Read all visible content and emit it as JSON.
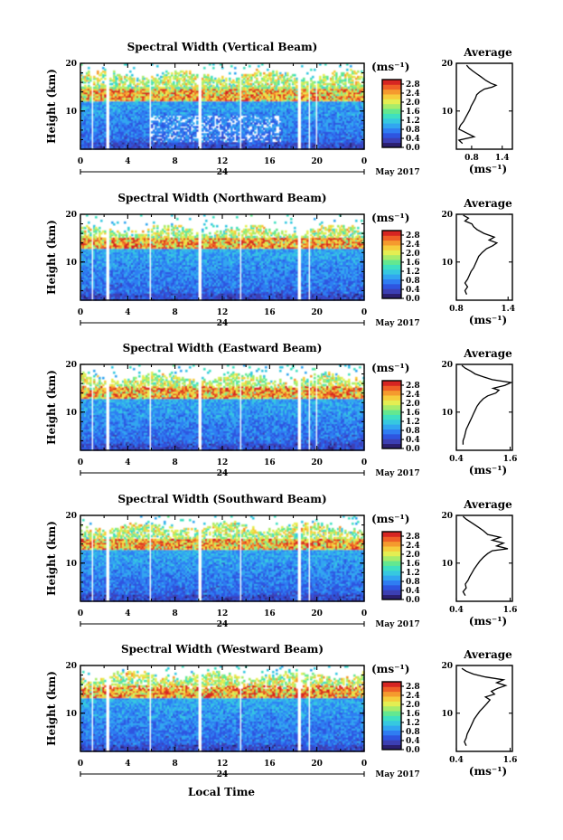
{
  "figure": {
    "x_axis_label": "Local Time",
    "date_suffix": "May 2017",
    "date_day": "24",
    "colorbar_unit": "(ms⁻¹)",
    "profile_title": "Average",
    "profile_unit": "(ms⁻¹)",
    "colorscale": [
      "#2b1f6f",
      "#3c3fb3",
      "#2e55e0",
      "#2f7df2",
      "#31a6f0",
      "#36c8e0",
      "#3fe0c0",
      "#63e890",
      "#a8ec6a",
      "#e4ee52",
      "#f6cc3c",
      "#f59a2e",
      "#ef5f27",
      "#d72522"
    ]
  },
  "chart_data": [
    {
      "type": "heatmap",
      "title": "Spectral Width (Vertical Beam)",
      "ylabel": "Height (km)",
      "xlabel": "Local Time",
      "x_ticks": [
        "0",
        "4",
        "8",
        "12",
        "16",
        "20",
        "0"
      ],
      "y_ticks": [
        "20",
        "10"
      ],
      "xlim": [
        0,
        24
      ],
      "ylim": [
        2,
        20
      ],
      "colorbar": {
        "unit": "(ms⁻¹)",
        "ticks": [
          "2.8",
          "2.4",
          "2.0",
          "1.6",
          "1.2",
          "0.8",
          "0.4",
          "0.0"
        ],
        "range": [
          0,
          3.0
        ]
      },
      "data_gaps_hours": [
        [
          0.9,
          1.1
        ],
        [
          2.2,
          2.4
        ],
        [
          5.8,
          6.0
        ],
        [
          10.0,
          10.2
        ],
        [
          13.4,
          13.6
        ],
        [
          18.4,
          18.6
        ],
        [
          19.2,
          19.4
        ],
        [
          19.9,
          20.1
        ]
      ],
      "profile": {
        "title": "Average",
        "xlabel": "(ms⁻¹)",
        "x_ticks": [
          "0.8",
          "1.4"
        ],
        "xlim": [
          0.5,
          1.6
        ],
        "y_ticks": [
          "20",
          "10"
        ],
        "ylim": [
          2,
          20
        ],
        "points": [
          [
            0.62,
            3.2
          ],
          [
            0.55,
            3.9
          ],
          [
            0.85,
            4.6
          ],
          [
            0.7,
            5.4
          ],
          [
            0.55,
            6.2
          ],
          [
            0.58,
            7.0
          ],
          [
            0.64,
            7.8
          ],
          [
            0.68,
            8.6
          ],
          [
            0.72,
            9.4
          ],
          [
            0.76,
            10.2
          ],
          [
            0.79,
            11.0
          ],
          [
            0.83,
            11.8
          ],
          [
            0.87,
            12.6
          ],
          [
            0.9,
            13.4
          ],
          [
            0.96,
            14.0
          ],
          [
            1.05,
            14.6
          ],
          [
            1.2,
            15.0
          ],
          [
            1.28,
            15.4
          ],
          [
            1.18,
            15.8
          ],
          [
            1.08,
            16.4
          ],
          [
            0.98,
            17.2
          ],
          [
            0.9,
            17.8
          ],
          [
            0.82,
            18.4
          ],
          [
            0.75,
            19.0
          ],
          [
            0.7,
            19.6
          ]
        ]
      }
    },
    {
      "type": "heatmap",
      "title": "Spectral Width (Northward Beam)",
      "ylabel": "Height (km)",
      "xlabel": "Local Time",
      "x_ticks": [
        "0",
        "4",
        "8",
        "12",
        "16",
        "20",
        "0"
      ],
      "y_ticks": [
        "20",
        "10"
      ],
      "xlim": [
        0,
        24
      ],
      "ylim": [
        2,
        20
      ],
      "colorbar": {
        "unit": "(ms⁻¹)",
        "ticks": [
          "2.8",
          "2.4",
          "2.0",
          "1.6",
          "1.2",
          "0.8",
          "0.4",
          "0.0"
        ],
        "range": [
          0,
          3.0
        ]
      },
      "data_gaps_hours": [
        [
          0.9,
          1.1
        ],
        [
          2.2,
          2.4
        ],
        [
          5.8,
          6.0
        ],
        [
          10.0,
          10.2
        ],
        [
          13.4,
          13.6
        ],
        [
          18.4,
          18.6
        ],
        [
          19.2,
          19.4
        ]
      ],
      "profile": {
        "title": "Average",
        "xlabel": "(ms⁻¹)",
        "x_ticks": [
          "0.8",
          "1.4"
        ],
        "xlim": [
          0.8,
          1.45
        ],
        "y_ticks": [
          "20",
          "10"
        ],
        "ylim": [
          2,
          20
        ],
        "points": [
          [
            0.92,
            3.2
          ],
          [
            0.9,
            4.0
          ],
          [
            0.93,
            4.8
          ],
          [
            0.9,
            5.6
          ],
          [
            0.93,
            6.4
          ],
          [
            0.95,
            7.2
          ],
          [
            0.97,
            8.0
          ],
          [
            1.0,
            8.8
          ],
          [
            1.02,
            9.6
          ],
          [
            1.04,
            10.4
          ],
          [
            1.06,
            11.2
          ],
          [
            1.1,
            12.0
          ],
          [
            1.15,
            12.8
          ],
          [
            1.22,
            13.4
          ],
          [
            1.27,
            14.0
          ],
          [
            1.18,
            14.6
          ],
          [
            1.24,
            15.2
          ],
          [
            1.12,
            16.0
          ],
          [
            1.04,
            16.8
          ],
          [
            1.0,
            17.4
          ],
          [
            0.98,
            18.0
          ],
          [
            0.9,
            18.6
          ],
          [
            0.94,
            19.2
          ],
          [
            0.88,
            19.8
          ]
        ]
      }
    },
    {
      "type": "heatmap",
      "title": "Spectral Width (Eastward Beam)",
      "ylabel": "Height (km)",
      "xlabel": "Local Time",
      "x_ticks": [
        "0",
        "4",
        "8",
        "12",
        "16",
        "20",
        "0"
      ],
      "y_ticks": [
        "20",
        "10"
      ],
      "xlim": [
        0,
        24
      ],
      "ylim": [
        2,
        20
      ],
      "colorbar": {
        "unit": "(ms⁻¹)",
        "ticks": [
          "2.8",
          "2.4",
          "2.0",
          "1.6",
          "1.2",
          "0.8",
          "0.4",
          "0.0"
        ],
        "range": [
          0,
          3.0
        ]
      },
      "data_gaps_hours": [
        [
          0.9,
          1.1
        ],
        [
          2.2,
          2.4
        ],
        [
          5.8,
          6.0
        ],
        [
          10.0,
          10.2
        ],
        [
          13.4,
          13.6
        ],
        [
          18.4,
          18.6
        ],
        [
          19.2,
          19.4
        ],
        [
          19.9,
          20.1
        ]
      ],
      "profile": {
        "title": "Average",
        "xlabel": "(ms⁻¹)",
        "x_ticks": [
          "0.4",
          "1.6"
        ],
        "xlim": [
          0.4,
          1.65
        ],
        "y_ticks": [
          "20",
          "10"
        ],
        "ylim": [
          2,
          20
        ],
        "points": [
          [
            0.55,
            3.2
          ],
          [
            0.55,
            4.0
          ],
          [
            0.58,
            4.8
          ],
          [
            0.6,
            5.6
          ],
          [
            0.62,
            6.4
          ],
          [
            0.66,
            7.2
          ],
          [
            0.7,
            8.0
          ],
          [
            0.74,
            8.8
          ],
          [
            0.78,
            9.6
          ],
          [
            0.82,
            10.4
          ],
          [
            0.86,
            11.2
          ],
          [
            0.92,
            12.0
          ],
          [
            1.0,
            12.8
          ],
          [
            1.1,
            13.4
          ],
          [
            1.28,
            14.0
          ],
          [
            1.35,
            14.6
          ],
          [
            1.22,
            15.0
          ],
          [
            1.48,
            15.6
          ],
          [
            1.62,
            16.2
          ],
          [
            1.2,
            16.8
          ],
          [
            1.0,
            17.4
          ],
          [
            0.82,
            18.0
          ],
          [
            0.72,
            18.6
          ],
          [
            0.6,
            19.2
          ],
          [
            0.52,
            19.8
          ]
        ]
      }
    },
    {
      "type": "heatmap",
      "title": "Spectral Width (Southward Beam)",
      "ylabel": "Height (km)",
      "xlabel": "Local Time",
      "x_ticks": [
        "0",
        "4",
        "8",
        "12",
        "16",
        "20",
        "0"
      ],
      "y_ticks": [
        "20",
        "10"
      ],
      "xlim": [
        0,
        24
      ],
      "ylim": [
        2,
        20
      ],
      "colorbar": {
        "unit": "(ms⁻¹)",
        "ticks": [
          "2.8",
          "2.4",
          "2.0",
          "1.6",
          "1.2",
          "0.8",
          "0.4",
          "0.0"
        ],
        "range": [
          0,
          3.0
        ]
      },
      "data_gaps_hours": [
        [
          0.9,
          1.1
        ],
        [
          2.2,
          2.4
        ],
        [
          5.8,
          6.0
        ],
        [
          10.0,
          10.2
        ],
        [
          13.4,
          13.6
        ],
        [
          18.4,
          18.6
        ],
        [
          19.2,
          19.4
        ]
      ],
      "profile": {
        "title": "Average",
        "xlabel": "(ms⁻¹)",
        "x_ticks": [
          "0.4",
          "1.6"
        ],
        "xlim": [
          0.4,
          1.65
        ],
        "y_ticks": [
          "20",
          "10"
        ],
        "ylim": [
          2,
          20
        ],
        "points": [
          [
            0.6,
            3.2
          ],
          [
            0.55,
            4.0
          ],
          [
            0.62,
            4.8
          ],
          [
            0.6,
            5.6
          ],
          [
            0.66,
            6.4
          ],
          [
            0.7,
            7.2
          ],
          [
            0.75,
            8.0
          ],
          [
            0.8,
            8.8
          ],
          [
            0.86,
            9.6
          ],
          [
            0.92,
            10.4
          ],
          [
            1.0,
            11.2
          ],
          [
            1.1,
            12.0
          ],
          [
            1.2,
            12.6
          ],
          [
            1.55,
            13.0
          ],
          [
            1.3,
            13.6
          ],
          [
            1.45,
            14.2
          ],
          [
            1.2,
            14.8
          ],
          [
            1.38,
            15.4
          ],
          [
            1.1,
            16.0
          ],
          [
            1.0,
            16.8
          ],
          [
            0.88,
            17.6
          ],
          [
            0.75,
            18.4
          ],
          [
            0.62,
            19.2
          ],
          [
            0.55,
            19.8
          ]
        ]
      }
    },
    {
      "type": "heatmap",
      "title": "Spectral Width (Westward Beam)",
      "ylabel": "Height (km)",
      "xlabel": "Local Time",
      "x_ticks": [
        "0",
        "4",
        "8",
        "12",
        "16",
        "20",
        "0"
      ],
      "y_ticks": [
        "20",
        "10"
      ],
      "xlim": [
        0,
        24
      ],
      "ylim": [
        2,
        20
      ],
      "colorbar": {
        "unit": "(ms⁻¹)",
        "ticks": [
          "2.8",
          "2.4",
          "2.0",
          "1.6",
          "1.2",
          "0.8",
          "0.4",
          "0.0"
        ],
        "range": [
          0,
          3.0
        ]
      },
      "data_gaps_hours": [
        [
          0.9,
          1.1
        ],
        [
          2.2,
          2.4
        ],
        [
          5.8,
          6.0
        ],
        [
          10.0,
          10.2
        ],
        [
          13.4,
          13.6
        ],
        [
          18.4,
          18.6
        ],
        [
          19.2,
          19.4
        ]
      ],
      "profile": {
        "title": "Average",
        "xlabel": "(ms⁻¹)",
        "x_ticks": [
          "0.4",
          "1.6"
        ],
        "xlim": [
          0.4,
          1.65
        ],
        "y_ticks": [
          "20",
          "10"
        ],
        "ylim": [
          2,
          20
        ],
        "points": [
          [
            0.62,
            3.2
          ],
          [
            0.58,
            4.0
          ],
          [
            0.62,
            4.8
          ],
          [
            0.64,
            5.6
          ],
          [
            0.68,
            6.4
          ],
          [
            0.72,
            7.2
          ],
          [
            0.76,
            8.0
          ],
          [
            0.8,
            8.8
          ],
          [
            0.86,
            9.6
          ],
          [
            0.92,
            10.4
          ],
          [
            1.0,
            11.2
          ],
          [
            1.08,
            12.0
          ],
          [
            1.15,
            12.8
          ],
          [
            1.05,
            13.4
          ],
          [
            1.25,
            14.0
          ],
          [
            1.18,
            14.6
          ],
          [
            1.32,
            15.2
          ],
          [
            1.5,
            15.8
          ],
          [
            1.3,
            16.4
          ],
          [
            1.45,
            17.0
          ],
          [
            1.05,
            17.6
          ],
          [
            0.78,
            18.2
          ],
          [
            0.62,
            18.8
          ],
          [
            0.52,
            19.4
          ]
        ]
      }
    }
  ]
}
